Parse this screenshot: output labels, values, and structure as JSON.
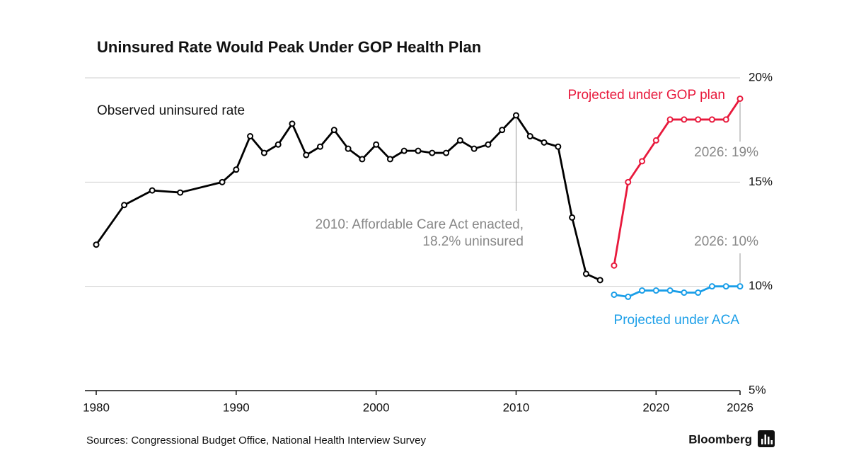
{
  "chart_data": {
    "type": "line",
    "title": "Uninsured Rate Would Peak Under GOP Health Plan",
    "source": "Sources: Congressional Budget Office, National Health Interview Survey",
    "brand": "Bloomberg",
    "xlim": [
      1980,
      2026
    ],
    "xticks": [
      1980,
      1990,
      2000,
      2010,
      2020,
      2026
    ],
    "ylim": [
      5,
      20
    ],
    "yticks": [
      {
        "value": 5,
        "label": "5%"
      },
      {
        "value": 10,
        "label": "10%"
      },
      {
        "value": 15,
        "label": "15%"
      },
      {
        "value": 20,
        "label": "20%"
      }
    ],
    "grid": true,
    "annotations": [
      "2010: Affordable Care Act enacted,",
      "18.2% uninsured",
      "2026: 19%",
      "2026: 10%"
    ],
    "series": [
      {
        "name": "Observed uninsured rate",
        "color": "#000000",
        "x": [
          1980,
          1982,
          1984,
          1986,
          1989,
          1990,
          1991,
          1992,
          1993,
          1994,
          1995,
          1996,
          1997,
          1998,
          1999,
          2000,
          2001,
          2002,
          2003,
          2004,
          2005,
          2006,
          2007,
          2008,
          2009,
          2010,
          2011,
          2012,
          2013,
          2014,
          2015,
          2016
        ],
        "values": [
          12.0,
          13.9,
          14.6,
          14.5,
          15.0,
          15.6,
          17.2,
          16.4,
          16.8,
          17.8,
          16.3,
          16.7,
          17.5,
          16.6,
          16.1,
          16.8,
          16.1,
          16.5,
          16.5,
          16.4,
          16.4,
          17.0,
          16.6,
          16.8,
          17.5,
          18.2,
          17.2,
          16.9,
          16.7,
          13.3,
          10.6,
          10.3
        ]
      },
      {
        "name": "Projected under GOP plan",
        "color": "#e8193c",
        "x": [
          2017,
          2018,
          2019,
          2020,
          2021,
          2022,
          2023,
          2024,
          2025,
          2026
        ],
        "values": [
          11.0,
          15.0,
          16.0,
          17.0,
          18.0,
          18.0,
          18.0,
          18.0,
          18.0,
          19.0
        ]
      },
      {
        "name": "Projected under ACA",
        "color": "#1a9ee8",
        "x": [
          2017,
          2018,
          2019,
          2020,
          2021,
          2022,
          2023,
          2024,
          2025,
          2026
        ],
        "values": [
          9.6,
          9.5,
          9.8,
          9.8,
          9.8,
          9.7,
          9.7,
          10.0,
          10.0,
          10.0
        ]
      }
    ]
  }
}
